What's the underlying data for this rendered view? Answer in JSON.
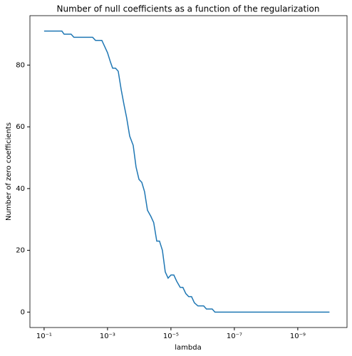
{
  "chart_data": {
    "type": "line",
    "title": "Number of null coefficients as a function of the regularization",
    "x_label": "lambda",
    "y_label": "Number of zero coefficients",
    "x_scale": "log",
    "xlim": [
      0.28,
      2.8e-11
    ],
    "xticks": [
      {
        "value": 0.1,
        "label": "10⁻¹"
      },
      {
        "value": 0.001,
        "label": "10⁻³"
      },
      {
        "value": 1e-05,
        "label": "10⁻⁵"
      },
      {
        "value": 1e-07,
        "label": "10⁻⁷"
      },
      {
        "value": 1e-09,
        "label": "10⁻⁹"
      }
    ],
    "ylim": [
      -5,
      96
    ],
    "yticks": [
      0,
      20,
      40,
      60,
      80
    ],
    "grid": false,
    "series": [
      {
        "name": "zero coefficients",
        "color": "#1f77b4",
        "x": [
          0.1,
          0.0275,
          0.0234,
          0.0141,
          0.0115,
          0.00295,
          0.0024,
          0.00151,
          0.00123,
          0.001,
          0.00081,
          0.00069,
          0.00056,
          0.00046,
          0.00037,
          0.0003,
          0.00025,
          0.0002,
          0.000155,
          0.000126,
          0.000102,
          8.3e-05,
          6.8e-05,
          5.5e-05,
          4.3e-05,
          3.5e-05,
          2.8e-05,
          2.3e-05,
          1.86e-05,
          1.51e-05,
          1.23e-05,
          1e-05,
          8.1e-06,
          6.6e-06,
          5.1e-06,
          4.2e-06,
          3.4e-06,
          2.75e-06,
          2.24e-06,
          1.82e-06,
          1.41e-06,
          9.3e-07,
          7.6e-07,
          5e-07,
          4.1e-07,
          1e-10
        ],
        "values": [
          91,
          91,
          90,
          90,
          89,
          89,
          88,
          88,
          86,
          84,
          81,
          79,
          79,
          78,
          72,
          67,
          63,
          57,
          54,
          47,
          43,
          42,
          39,
          33,
          31,
          29,
          23,
          23,
          20,
          13,
          11,
          12,
          12,
          10,
          8,
          8,
          6,
          5,
          5,
          3,
          2,
          2,
          1,
          1,
          0,
          0
        ]
      }
    ]
  }
}
